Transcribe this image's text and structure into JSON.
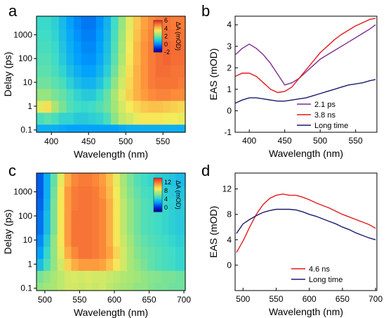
{
  "panels": [
    {
      "letter": "a"
    },
    {
      "letter": "b"
    },
    {
      "letter": "c"
    },
    {
      "letter": "d"
    }
  ],
  "chart_data": [
    {
      "id": "a",
      "type": "heatmap",
      "xlabel": "Wavelength (nm)",
      "ylabel": "Delay (ps)",
      "xlim": [
        380,
        580
      ],
      "ylim": [
        0.08,
        6000
      ],
      "yscale": "log",
      "xticks": [
        400,
        450,
        500,
        550
      ],
      "yticks": [
        {
          "value": 0.1,
          "label": "0.1"
        },
        {
          "value": 1,
          "label": "1"
        },
        {
          "value": 10,
          "label": "10"
        },
        {
          "value": 100,
          "label": "100"
        },
        {
          "value": 1000,
          "label": "1000"
        }
      ],
      "colorbar": {
        "label": "ΔA (mOD)",
        "range": [
          -2,
          6
        ],
        "ticks": [
          "6",
          "4",
          "2",
          "0",
          "-2"
        ]
      },
      "x": [
        385,
        395,
        405,
        415,
        425,
        435,
        445,
        455,
        465,
        475,
        485,
        495,
        505,
        515,
        525,
        535,
        545,
        555,
        565,
        575
      ],
      "y": [
        0.1,
        0.3,
        1,
        3,
        10,
        30,
        100,
        300,
        1000,
        3000
      ],
      "z": [
        [
          0.5,
          0.5,
          0.5,
          0.4,
          0.3,
          0.3,
          0.3,
          0.3,
          0.3,
          0.3,
          0.3,
          0.4,
          0.5,
          0.5,
          0.5,
          0.5,
          0.5,
          0.5,
          0.5,
          0.5
        ],
        [
          1.5,
          1.7,
          1.5,
          1.2,
          1.2,
          1.0,
          1.0,
          1.1,
          1.2,
          1.5,
          2.2,
          2.8,
          3.0,
          3.3,
          3.5,
          3.5,
          3.5,
          3.4,
          3.4,
          3.3
        ],
        [
          3.2,
          3.6,
          2.5,
          2.0,
          1.6,
          1.4,
          1.3,
          1.4,
          1.6,
          1.9,
          2.4,
          3.0,
          3.4,
          3.7,
          3.9,
          4.0,
          4.0,
          3.9,
          3.8,
          3.7
        ],
        [
          2.3,
          2.3,
          2.0,
          1.8,
          1.5,
          1.2,
          1.0,
          1.0,
          1.3,
          1.8,
          2.5,
          3.2,
          3.8,
          4.2,
          4.5,
          4.7,
          4.8,
          4.8,
          4.7,
          4.7
        ],
        [
          1.9,
          1.9,
          1.7,
          1.5,
          1.1,
          0.8,
          0.6,
          0.6,
          0.9,
          1.4,
          2.2,
          3.0,
          3.7,
          4.2,
          4.6,
          4.9,
          5.0,
          5.0,
          5.0,
          4.9
        ],
        [
          1.7,
          1.7,
          1.5,
          1.2,
          0.8,
          0.5,
          0.3,
          0.3,
          0.6,
          1.1,
          1.9,
          2.8,
          3.6,
          4.2,
          4.6,
          4.9,
          5.1,
          5.1,
          5.0,
          5.0
        ],
        [
          1.6,
          1.6,
          1.4,
          1.0,
          0.6,
          0.3,
          0.1,
          0.1,
          0.4,
          0.9,
          1.7,
          2.6,
          3.5,
          4.1,
          4.6,
          4.9,
          5.1,
          5.2,
          5.1,
          5.1
        ],
        [
          1.5,
          1.5,
          1.3,
          0.9,
          0.5,
          0.2,
          0.0,
          0.0,
          0.3,
          0.8,
          1.6,
          2.5,
          3.4,
          4.1,
          4.6,
          4.9,
          5.1,
          5.2,
          5.1,
          5.1
        ],
        [
          1.4,
          1.4,
          1.2,
          0.8,
          0.4,
          0.1,
          -0.1,
          -0.1,
          0.2,
          0.7,
          1.5,
          2.4,
          3.3,
          4.0,
          4.5,
          4.8,
          5.0,
          5.1,
          5.0,
          5.0
        ],
        [
          1.3,
          1.3,
          1.1,
          0.7,
          0.3,
          0.0,
          -0.2,
          -0.2,
          0.1,
          0.6,
          1.4,
          2.3,
          3.2,
          3.9,
          4.4,
          4.7,
          4.9,
          5.0,
          4.9,
          4.9
        ]
      ]
    },
    {
      "id": "b",
      "type": "line",
      "xlabel": "Wavelength (nm)",
      "ylabel": "EAS (mOD)",
      "xlim": [
        380,
        580
      ],
      "ylim": [
        -1,
        4.4
      ],
      "xticks": [
        400,
        450,
        500,
        550
      ],
      "yticks": [
        -1,
        0,
        1,
        2,
        3,
        4
      ],
      "legend": "bottom-right",
      "series": [
        {
          "name": "2.1 ps",
          "color": "#7b2e8e",
          "x": [
            380,
            390,
            400,
            410,
            420,
            430,
            440,
            450,
            460,
            470,
            480,
            490,
            500,
            510,
            520,
            530,
            540,
            550,
            560,
            570,
            578
          ],
          "y": [
            2.6,
            2.9,
            3.1,
            2.9,
            2.6,
            2.2,
            1.7,
            1.2,
            1.3,
            1.5,
            1.8,
            2.1,
            2.4,
            2.6,
            2.8,
            3.0,
            3.2,
            3.4,
            3.6,
            3.8,
            4.0
          ]
        },
        {
          "name": "3.8 ns",
          "color": "#e41a1c",
          "x": [
            380,
            390,
            400,
            410,
            420,
            430,
            440,
            450,
            460,
            470,
            480,
            490,
            500,
            510,
            520,
            530,
            540,
            550,
            560,
            570,
            578
          ],
          "y": [
            1.6,
            1.75,
            1.75,
            1.6,
            1.3,
            1.0,
            0.85,
            0.9,
            1.1,
            1.5,
            1.9,
            2.3,
            2.7,
            3.0,
            3.3,
            3.55,
            3.75,
            3.95,
            4.1,
            4.25,
            4.3
          ]
        },
        {
          "name": "Long time",
          "color": "#1a1a6e",
          "x": [
            380,
            390,
            400,
            410,
            420,
            430,
            440,
            450,
            460,
            470,
            480,
            490,
            500,
            510,
            520,
            530,
            540,
            550,
            560,
            570,
            578
          ],
          "y": [
            0.35,
            0.5,
            0.6,
            0.6,
            0.55,
            0.5,
            0.45,
            0.45,
            0.5,
            0.55,
            0.6,
            0.7,
            0.8,
            0.9,
            1.0,
            1.1,
            1.2,
            1.25,
            1.3,
            1.4,
            1.45
          ]
        }
      ]
    },
    {
      "id": "c",
      "type": "heatmap",
      "xlabel": "Wavelength (nm)",
      "ylabel": "Delay (ps)",
      "xlim": [
        488,
        702
      ],
      "ylim": [
        0.08,
        6000
      ],
      "yscale": "log",
      "xticks": [
        500,
        550,
        600,
        650,
        700
      ],
      "yticks": [
        {
          "value": 0.1,
          "label": "0.1"
        },
        {
          "value": 1,
          "label": "1"
        },
        {
          "value": 10,
          "label": "10"
        },
        {
          "value": 100,
          "label": "100"
        },
        {
          "value": 1000,
          "label": "1000"
        }
      ],
      "colorbar": {
        "label": "ΔA (mOD)",
        "range": [
          -2,
          14
        ],
        "ticks": [
          "12",
          "8",
          "4",
          "0"
        ]
      },
      "x": [
        493,
        503,
        513,
        523,
        533,
        543,
        553,
        563,
        573,
        583,
        593,
        603,
        613,
        623,
        633,
        643,
        653,
        663,
        673,
        683,
        693,
        700
      ],
      "y": [
        0.1,
        0.3,
        1,
        3,
        10,
        30,
        100,
        300,
        1000,
        3000
      ],
      "z": [
        [
          6.5,
          6.8,
          7.0,
          7.5,
          8.0,
          8.0,
          7.8,
          8.0,
          7.8,
          8.0,
          7.5,
          7.2,
          7.0,
          6.8,
          6.5,
          6.5,
          6.2,
          6.0,
          6.0,
          5.8,
          5.8,
          5.8
        ],
        [
          6.0,
          6.5,
          7.0,
          7.5,
          8.0,
          8.2,
          8.0,
          8.2,
          8.0,
          8.0,
          7.8,
          7.5,
          7.2,
          7.0,
          6.8,
          6.5,
          6.3,
          6.2,
          6.0,
          6.0,
          5.8,
          5.8
        ],
        [
          3.5,
          5.0,
          6.5,
          8.0,
          9.5,
          10.5,
          11.0,
          11.0,
          11.0,
          10.8,
          10.0,
          9.0,
          8.0,
          7.0,
          6.5,
          6.0,
          5.5,
          5.2,
          5.0,
          4.8,
          4.5,
          4.5
        ],
        [
          2.5,
          4.5,
          6.5,
          8.5,
          10.5,
          11.5,
          12.0,
          12.0,
          11.8,
          11.5,
          10.8,
          9.5,
          8.0,
          7.0,
          6.2,
          5.8,
          5.5,
          5.2,
          5.0,
          4.8,
          4.5,
          4.5
        ],
        [
          2.0,
          4.0,
          6.5,
          9.0,
          11.0,
          12.0,
          12.0,
          12.0,
          11.8,
          11.5,
          10.5,
          9.0,
          7.8,
          6.8,
          6.0,
          5.5,
          5.2,
          5.0,
          4.8,
          4.5,
          4.2,
          4.2
        ],
        [
          1.5,
          3.5,
          6.0,
          9.0,
          11.0,
          12.0,
          12.0,
          12.0,
          11.8,
          11.5,
          10.5,
          9.0,
          7.5,
          6.5,
          5.8,
          5.2,
          5.0,
          4.8,
          4.5,
          4.2,
          4.0,
          4.0
        ],
        [
          1.5,
          3.5,
          6.0,
          9.0,
          11.0,
          12.0,
          12.0,
          12.0,
          11.8,
          11.5,
          10.5,
          9.0,
          7.5,
          6.5,
          5.8,
          5.2,
          5.0,
          4.8,
          4.5,
          4.2,
          4.0,
          4.0
        ],
        [
          1.2,
          3.2,
          6.0,
          9.0,
          11.0,
          11.8,
          12.0,
          12.0,
          11.8,
          11.5,
          10.5,
          9.0,
          7.5,
          6.5,
          5.8,
          5.2,
          5.0,
          4.8,
          4.5,
          4.2,
          4.0,
          4.0
        ],
        [
          1.0,
          3.0,
          5.8,
          9.0,
          11.0,
          11.8,
          12.0,
          12.0,
          11.8,
          11.2,
          10.2,
          8.8,
          7.2,
          6.2,
          5.5,
          5.0,
          4.8,
          4.5,
          4.2,
          4.0,
          3.8,
          3.8
        ],
        [
          1.0,
          3.0,
          5.5,
          8.5,
          10.5,
          11.5,
          11.8,
          11.8,
          11.5,
          11.0,
          10.0,
          8.5,
          7.0,
          6.0,
          5.2,
          4.8,
          4.5,
          4.2,
          4.0,
          3.8,
          3.5,
          3.5
        ]
      ]
    },
    {
      "id": "d",
      "type": "line",
      "xlabel": "Wavelength (nm)",
      "ylabel": "EAS (mOD)",
      "xlim": [
        488,
        702
      ],
      "ylim": [
        -4,
        14.5
      ],
      "xticks": [
        500,
        550,
        600,
        650,
        700
      ],
      "yticks": [
        0,
        4,
        8,
        12
      ],
      "legend": "bottom-right",
      "series": [
        {
          "name": "4.6 ns",
          "color": "#e41a1c",
          "x": [
            490,
            500,
            510,
            520,
            530,
            540,
            550,
            560,
            570,
            580,
            590,
            600,
            610,
            620,
            630,
            640,
            650,
            660,
            670,
            680,
            690,
            700
          ],
          "y": [
            2.0,
            3.8,
            6.0,
            8.0,
            9.5,
            10.5,
            11.0,
            11.2,
            11.0,
            11.0,
            10.7,
            10.3,
            9.8,
            9.4,
            9.0,
            8.5,
            8.0,
            7.6,
            7.2,
            6.8,
            6.4,
            5.8
          ]
        },
        {
          "name": "Long time",
          "color": "#1a1a6e",
          "x": [
            490,
            500,
            510,
            520,
            530,
            540,
            550,
            560,
            570,
            580,
            590,
            600,
            610,
            620,
            630,
            640,
            650,
            660,
            670,
            680,
            690,
            700
          ],
          "y": [
            5.0,
            6.5,
            7.2,
            7.8,
            8.3,
            8.6,
            8.8,
            8.8,
            8.8,
            8.7,
            8.4,
            8.0,
            7.7,
            7.3,
            6.9,
            6.5,
            6.0,
            5.6,
            5.1,
            4.7,
            4.3,
            4.0
          ]
        }
      ]
    }
  ]
}
